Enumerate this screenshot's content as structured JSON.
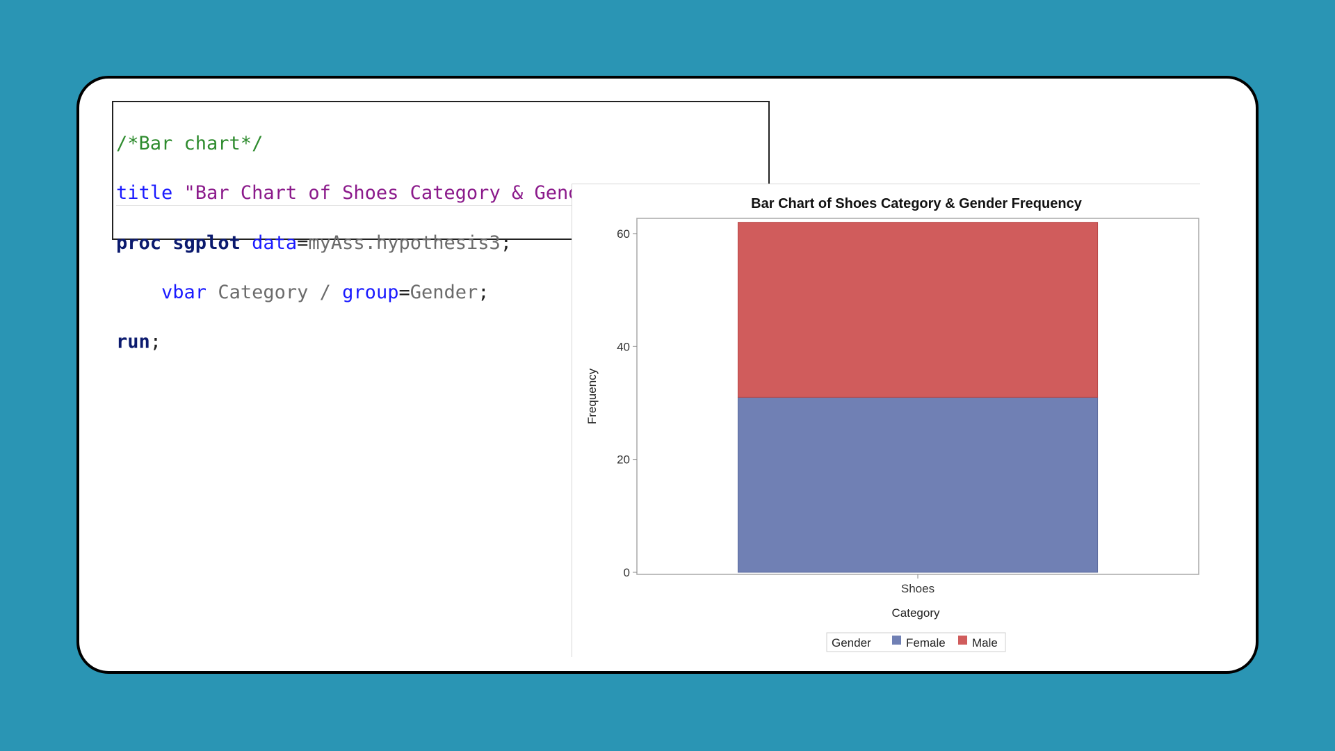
{
  "code": {
    "comment": "/*Bar chart*/",
    "line2_kw": "title",
    "line2_str": "\"Bar Chart of Shoes Category & Gender Frequency\"",
    "line2_end": ";",
    "line3_kw1": "proc",
    "line3_kw2": "sgplot",
    "line3_kw3": "data",
    "line3_eq": "=",
    "line3_val": "myAss.hypothesis3",
    "line3_end": ";",
    "line4_kw": "vbar",
    "line4_val": "Category",
    "line4_slash": "/",
    "line4_kw2": "group",
    "line4_eq": "=",
    "line4_val2": "Gender",
    "line4_end": ";",
    "line5_kw": "run",
    "line5_end": ";"
  },
  "chart_data": {
    "type": "bar",
    "stacked": true,
    "title": "Bar Chart of Shoes Category & Gender Frequency",
    "xlabel": "Category",
    "ylabel": "Frequency",
    "categories": [
      "Shoes"
    ],
    "series": [
      {
        "name": "Female",
        "values": [
          31
        ],
        "color": "#7080b4"
      },
      {
        "name": "Male",
        "values": [
          31
        ],
        "color": "#d05c5c"
      }
    ],
    "ylim": [
      0,
      62.7
    ],
    "yticks": [
      0,
      20,
      40,
      60
    ],
    "legend": {
      "title": "Gender",
      "placement": "bottom"
    },
    "grid": false
  }
}
